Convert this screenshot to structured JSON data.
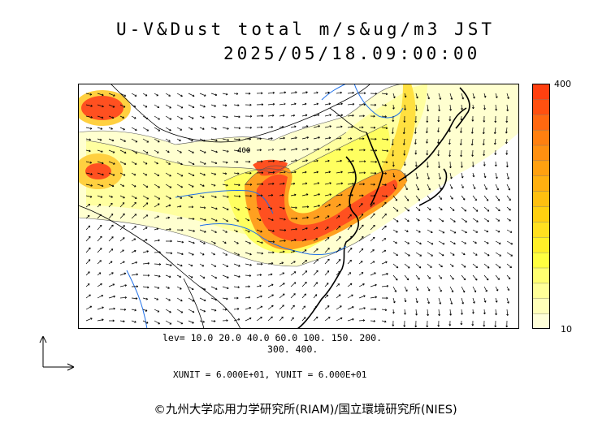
{
  "title": "U-V&Dust total m/s&ug/m3 JST",
  "datetime": "2025/05/18.09:00:00",
  "colorbar": {
    "max_label": "400",
    "min_label": "10",
    "colors": [
      "#ffffd8",
      "#ffffb8",
      "#ffff98",
      "#ffff70",
      "#ffff40",
      "#fff028",
      "#ffe020",
      "#ffd010",
      "#ffc010",
      "#ffb010",
      "#ffa010",
      "#ff9010",
      "#ff8010",
      "#ff6810",
      "#ff5010",
      "#ff4010"
    ]
  },
  "levels_line1": "lev= 10.0 20.0 40.0 60.0 100. 150. 200.",
  "levels_line2": "300. 400.",
  "contour_label": "400",
  "units": "XUNIT = 6.000E+01, YUNIT = 6.000E+01",
  "credit": "©九州大学応用力学研究所(RIAM)/国立環境研究所(NIES)",
  "icons": [
    "reference-vector-icon"
  ]
}
